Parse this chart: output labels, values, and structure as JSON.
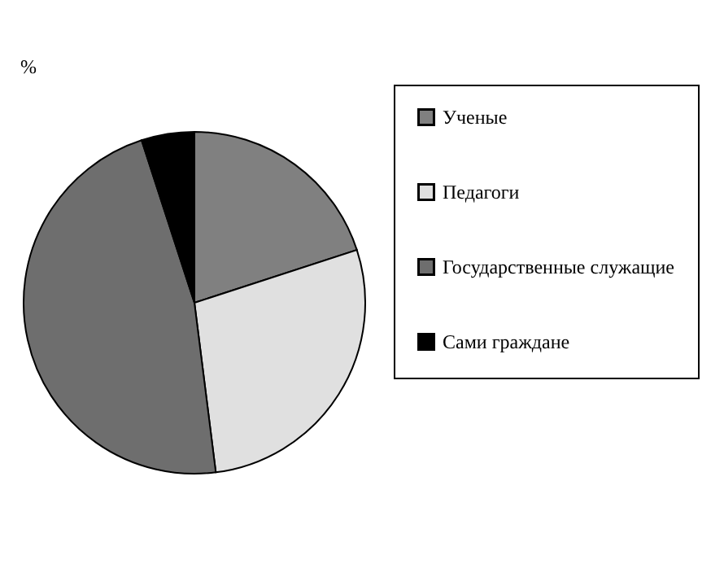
{
  "chart_data": {
    "type": "pie",
    "title": "%",
    "categories": [
      "Ученые",
      "Педагоги",
      "Государственные служащие",
      "Сами граждане"
    ],
    "values": [
      20,
      28,
      47,
      5
    ],
    "colors": [
      "#808080",
      "#e0e0e0",
      "#6e6e6e",
      "#000000"
    ],
    "legend": "right"
  }
}
